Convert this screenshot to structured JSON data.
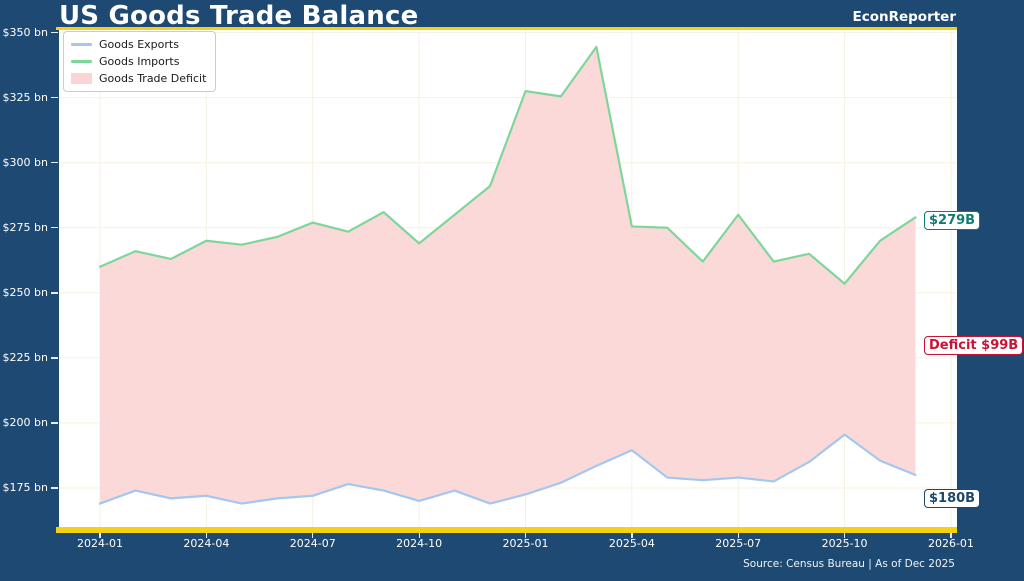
{
  "page": {
    "bg_color": "#1e4973",
    "accent_color": "#f5d113"
  },
  "header": {
    "title": "US Goods Trade Balance",
    "brand": "EconReporter"
  },
  "footer": {
    "source": "Source: Census Bureau | As of Dec 2025"
  },
  "legend": {
    "items": [
      {
        "label": "Goods Exports",
        "swatch": "line",
        "color": "#a3c7f0"
      },
      {
        "label": "Goods Imports",
        "swatch": "line",
        "color": "#7ed69b"
      },
      {
        "label": "Goods Trade Deficit",
        "swatch": "patch",
        "color": "#fbd5d5"
      }
    ]
  },
  "annotations": {
    "imports_end": {
      "text": "$279B",
      "color": "#0f7d74"
    },
    "deficit": {
      "text": "Deficit $99B",
      "color": "#c81236"
    },
    "exports_end": {
      "text": "$180B",
      "color": "#1d4868"
    }
  },
  "chart_data": {
    "type": "line",
    "title": "US Goods Trade Balance",
    "xlabel": "",
    "ylabel": "",
    "x": [
      "2024-01",
      "2024-02",
      "2024-03",
      "2024-04",
      "2024-05",
      "2024-06",
      "2024-07",
      "2024-08",
      "2024-09",
      "2024-10",
      "2024-11",
      "2024-12",
      "2025-01",
      "2025-02",
      "2025-03",
      "2025-04",
      "2025-05",
      "2025-06",
      "2025-07",
      "2025-08",
      "2025-09",
      "2025-10",
      "2025-11",
      "2025-12"
    ],
    "series": [
      {
        "name": "Goods Exports",
        "color": "#a3c7f0",
        "values": [
          169,
          174,
          171,
          172,
          169,
          171,
          172,
          176.5,
          174,
          170,
          174,
          169,
          172.5,
          177,
          183.5,
          189.5,
          179,
          178,
          179,
          177.5,
          185,
          195.5,
          185.5,
          180
        ]
      },
      {
        "name": "Goods Imports",
        "color": "#7ed69b",
        "values": [
          260,
          266,
          263,
          270,
          268.5,
          271.5,
          277,
          273.5,
          281,
          269,
          280,
          291,
          327.5,
          325.5,
          344.5,
          275.5,
          275,
          262,
          280,
          262,
          265,
          253.5,
          270,
          279
        ]
      }
    ],
    "fill_between": {
      "name": "Goods Trade Deficit",
      "upper": "Goods Imports",
      "lower": "Goods Exports",
      "color": "#fbd5d5",
      "opacity": 0.9
    },
    "ylim": [
      160,
      351
    ],
    "y_ticks": [
      175,
      200,
      225,
      250,
      275,
      300,
      325,
      350
    ],
    "y_tick_suffix": " bn",
    "y_tick_prefix": "$",
    "x_ticks": [
      {
        "label": "2024-01",
        "index": 0
      },
      {
        "label": "2024-04",
        "index": 3
      },
      {
        "label": "2024-07",
        "index": 6
      },
      {
        "label": "2024-10",
        "index": 9
      },
      {
        "label": "2025-01",
        "index": 12
      },
      {
        "label": "2025-04",
        "index": 15
      },
      {
        "label": "2025-07",
        "index": 18
      },
      {
        "label": "2025-10",
        "index": 21
      },
      {
        "label": "2026-01",
        "index": 24
      }
    ],
    "grid": true,
    "grid_color": "#f6f2df",
    "legend_position": "upper left",
    "last_values": {
      "exports": "180",
      "imports": "279",
      "deficit": "99"
    }
  }
}
